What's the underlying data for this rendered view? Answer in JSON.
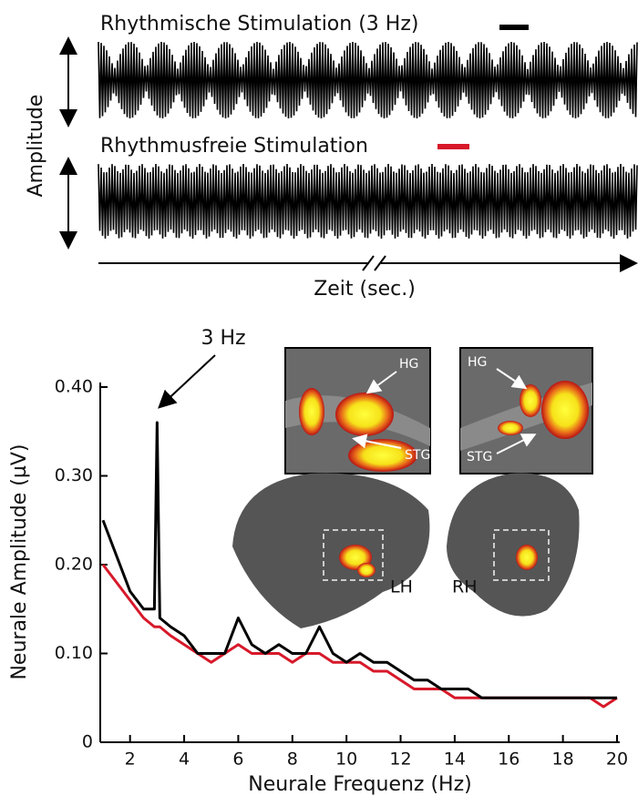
{
  "stimulus": {
    "ylabel": "Amplitude",
    "xlabel": "Zeit (sec.)"
  },
  "brain": {
    "labels": [
      "HG",
      "STG",
      "HG",
      "STG"
    ],
    "hemispheres": [
      "LH",
      "RH"
    ]
  },
  "chart_data": {
    "type": "line",
    "ylabel": "Neurale Amplitude (µV)",
    "xlabel": "Neurale Frequenz (Hz)",
    "annotation": "3 Hz",
    "x": [
      1,
      1.5,
      2,
      2.5,
      2.9,
      3,
      3.1,
      3.5,
      4,
      4.5,
      5,
      5.5,
      6,
      6.5,
      7,
      7.5,
      8,
      8.5,
      9,
      9.5,
      10,
      10.5,
      11,
      11.5,
      12,
      12.5,
      13,
      13.5,
      14,
      14.5,
      15,
      15.5,
      16,
      16.5,
      17,
      17.5,
      18,
      18.5,
      19,
      19.5,
      20
    ],
    "series": [
      {
        "name": "Rhythmische Stimulation (3 Hz)",
        "color": "#000000",
        "values": [
          0.25,
          0.21,
          0.17,
          0.15,
          0.15,
          0.36,
          0.14,
          0.13,
          0.12,
          0.1,
          0.1,
          0.1,
          0.14,
          0.11,
          0.1,
          0.11,
          0.1,
          0.1,
          0.13,
          0.1,
          0.09,
          0.1,
          0.09,
          0.09,
          0.08,
          0.07,
          0.07,
          0.06,
          0.06,
          0.06,
          0.05,
          0.05,
          0.05,
          0.05,
          0.05,
          0.05,
          0.05,
          0.05,
          0.05,
          0.05,
          0.05
        ]
      },
      {
        "name": "Rhythmusfreie Stimulation",
        "color": "#d7192a",
        "values": [
          0.2,
          0.18,
          0.16,
          0.14,
          0.13,
          0.13,
          0.13,
          0.12,
          0.11,
          0.1,
          0.09,
          0.1,
          0.11,
          0.1,
          0.1,
          0.1,
          0.09,
          0.1,
          0.1,
          0.09,
          0.09,
          0.09,
          0.08,
          0.08,
          0.07,
          0.06,
          0.06,
          0.06,
          0.05,
          0.05,
          0.05,
          0.05,
          0.05,
          0.05,
          0.05,
          0.05,
          0.05,
          0.05,
          0.05,
          0.04,
          0.05
        ]
      }
    ],
    "xlim": [
      1,
      20
    ],
    "ylim": [
      0,
      0.4
    ],
    "xticks": [
      2,
      4,
      6,
      8,
      10,
      12,
      14,
      16,
      18,
      20
    ],
    "yticks": [
      0,
      {
        "value": 0.1,
        "label": "0.10"
      },
      {
        "value": 0.2,
        "label": "0.20"
      },
      {
        "value": 0.3,
        "label": "0.30"
      },
      {
        "value": 0.4,
        "label": "0.40"
      }
    ]
  }
}
